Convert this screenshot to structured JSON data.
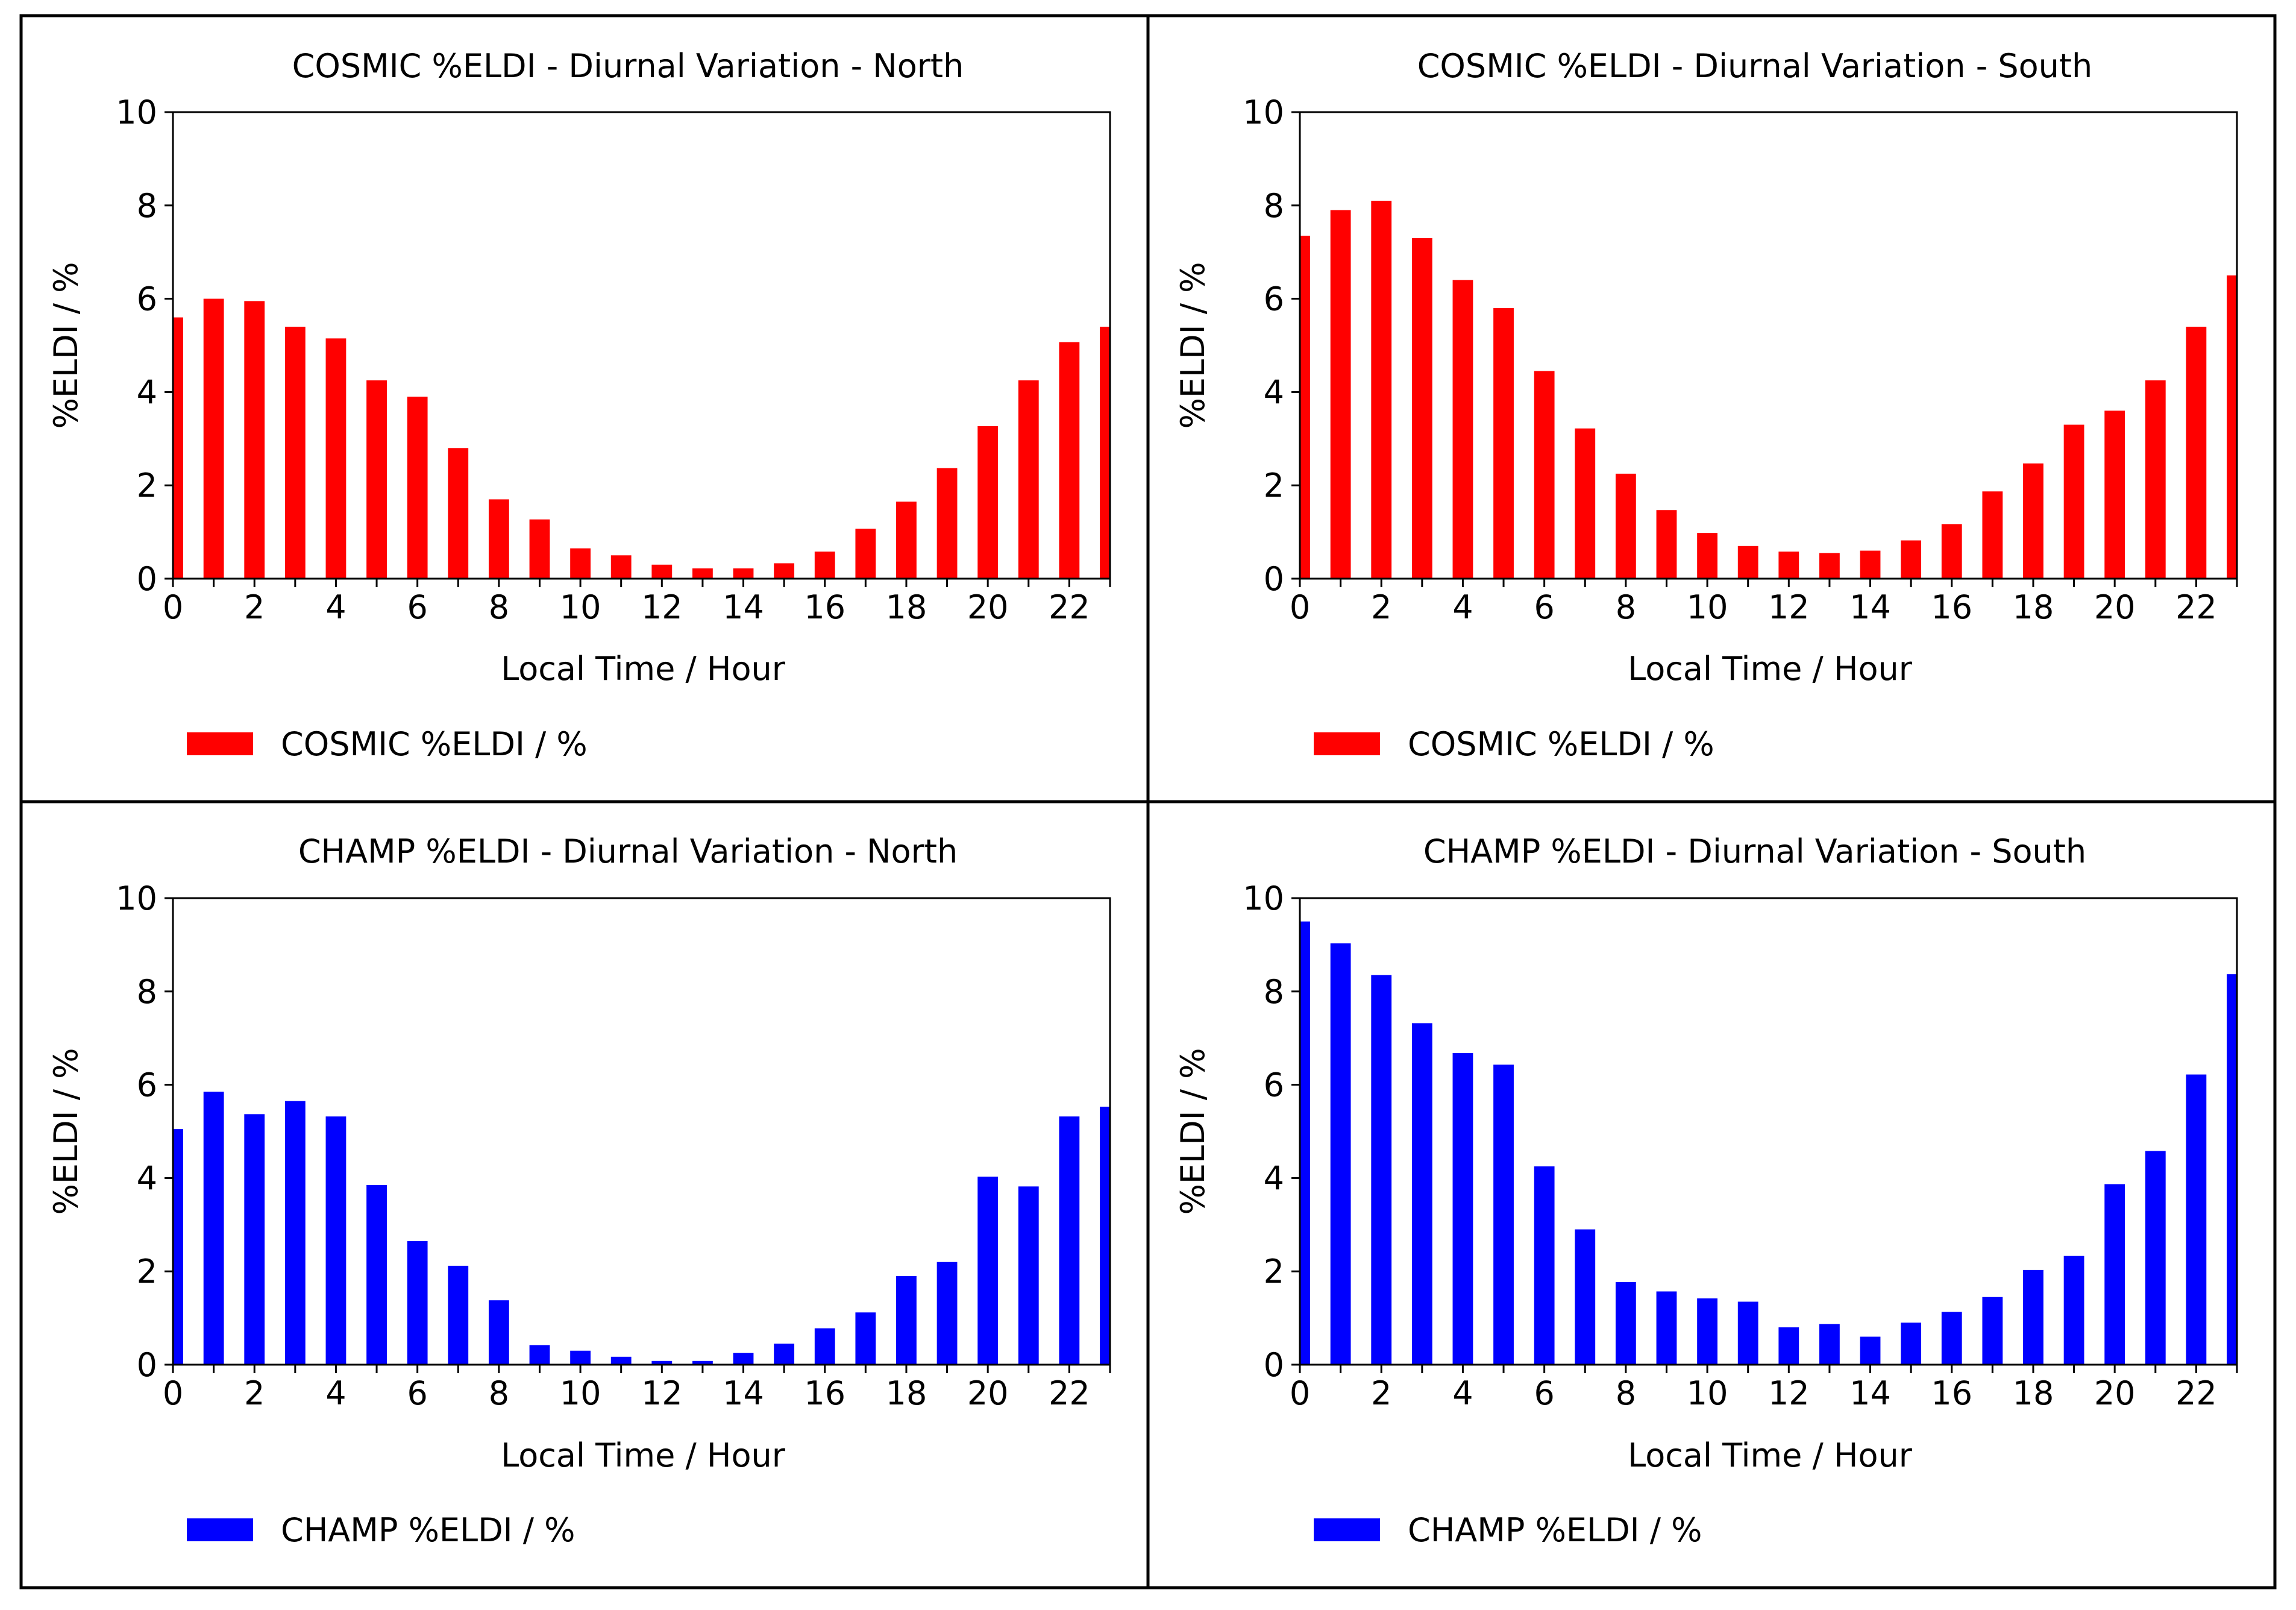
{
  "chart_data": [
    {
      "type": "bar",
      "title": "COSMIC %ELDI - Diurnal Variation - North",
      "xlabel": "Local Time / Hour",
      "ylabel": "%ELDI / %",
      "xlim": [
        0,
        23
      ],
      "ylim": [
        0,
        10
      ],
      "xticks": [
        0,
        2,
        4,
        6,
        8,
        10,
        12,
        14,
        16,
        18,
        20,
        22
      ],
      "yticks": [
        0,
        2,
        4,
        6,
        8,
        10
      ],
      "x": [
        0,
        1,
        2,
        3,
        4,
        5,
        6,
        7,
        8,
        9,
        10,
        11,
        12,
        13,
        14,
        15,
        16,
        17,
        18,
        19,
        20,
        21,
        22,
        23
      ],
      "series": [
        {
          "name": "COSMIC %ELDI / %",
          "color": "#ff0000",
          "values": [
            5.6,
            6.0,
            5.95,
            5.4,
            5.15,
            4.25,
            3.9,
            2.8,
            1.7,
            1.27,
            0.65,
            0.5,
            0.3,
            0.22,
            0.22,
            0.33,
            0.58,
            1.07,
            1.65,
            2.37,
            3.27,
            4.25,
            5.07,
            5.4
          ]
        }
      ],
      "legend_position": "bottom-left"
    },
    {
      "type": "bar",
      "title": "COSMIC %ELDI - Diurnal Variation - South",
      "xlabel": "Local Time / Hour",
      "ylabel": "%ELDI / %",
      "xlim": [
        0,
        23
      ],
      "ylim": [
        0,
        10
      ],
      "xticks": [
        0,
        2,
        4,
        6,
        8,
        10,
        12,
        14,
        16,
        18,
        20,
        22
      ],
      "yticks": [
        0,
        2,
        4,
        6,
        8,
        10
      ],
      "x": [
        0,
        1,
        2,
        3,
        4,
        5,
        6,
        7,
        8,
        9,
        10,
        11,
        12,
        13,
        14,
        15,
        16,
        17,
        18,
        19,
        20,
        21,
        22,
        23
      ],
      "series": [
        {
          "name": "COSMIC %ELDI / %",
          "color": "#ff0000",
          "values": [
            7.35,
            7.9,
            8.1,
            7.3,
            6.4,
            5.8,
            4.45,
            3.22,
            2.25,
            1.47,
            0.98,
            0.7,
            0.58,
            0.55,
            0.6,
            0.82,
            1.17,
            1.87,
            2.47,
            3.3,
            3.6,
            4.25,
            5.4,
            6.5
          ]
        }
      ],
      "legend_position": "bottom-left"
    },
    {
      "type": "bar",
      "title": "CHAMP %ELDI - Diurnal Variation - North",
      "xlabel": "Local Time / Hour",
      "ylabel": "%ELDI / %",
      "xlim": [
        0,
        23
      ],
      "ylim": [
        0,
        10
      ],
      "xticks": [
        0,
        2,
        4,
        6,
        8,
        10,
        12,
        14,
        16,
        18,
        20,
        22
      ],
      "yticks": [
        0,
        2,
        4,
        6,
        8,
        10
      ],
      "x": [
        0,
        1,
        2,
        3,
        4,
        5,
        6,
        7,
        8,
        9,
        10,
        11,
        12,
        13,
        14,
        15,
        16,
        17,
        18,
        19,
        20,
        21,
        22,
        23
      ],
      "series": [
        {
          "name": "CHAMP %ELDI / %",
          "color": "#0000ff",
          "values": [
            5.05,
            5.85,
            5.37,
            5.65,
            5.32,
            3.85,
            2.65,
            2.12,
            1.38,
            0.42,
            0.3,
            0.17,
            0.08,
            0.08,
            0.25,
            0.45,
            0.78,
            1.12,
            1.9,
            2.2,
            4.03,
            3.82,
            5.32,
            5.53
          ]
        }
      ],
      "legend_position": "bottom-left"
    },
    {
      "type": "bar",
      "title": "CHAMP %ELDI - Diurnal Variation - South",
      "xlabel": "Local Time / Hour",
      "ylabel": "%ELDI / %",
      "xlim": [
        0,
        23
      ],
      "ylim": [
        0,
        10
      ],
      "xticks": [
        0,
        2,
        4,
        6,
        8,
        10,
        12,
        14,
        16,
        18,
        20,
        22
      ],
      "yticks": [
        0,
        2,
        4,
        6,
        8,
        10
      ],
      "x": [
        0,
        1,
        2,
        3,
        4,
        5,
        6,
        7,
        8,
        9,
        10,
        11,
        12,
        13,
        14,
        15,
        16,
        17,
        18,
        19,
        20,
        21,
        22,
        23
      ],
      "series": [
        {
          "name": "CHAMP %ELDI / %",
          "color": "#0000ff",
          "values": [
            9.5,
            9.03,
            8.35,
            7.32,
            6.68,
            6.43,
            4.25,
            2.9,
            1.77,
            1.57,
            1.42,
            1.35,
            0.8,
            0.87,
            0.6,
            0.9,
            1.13,
            1.45,
            2.03,
            2.33,
            3.87,
            4.58,
            6.22,
            8.37
          ]
        }
      ],
      "legend_position": "bottom-left"
    }
  ]
}
